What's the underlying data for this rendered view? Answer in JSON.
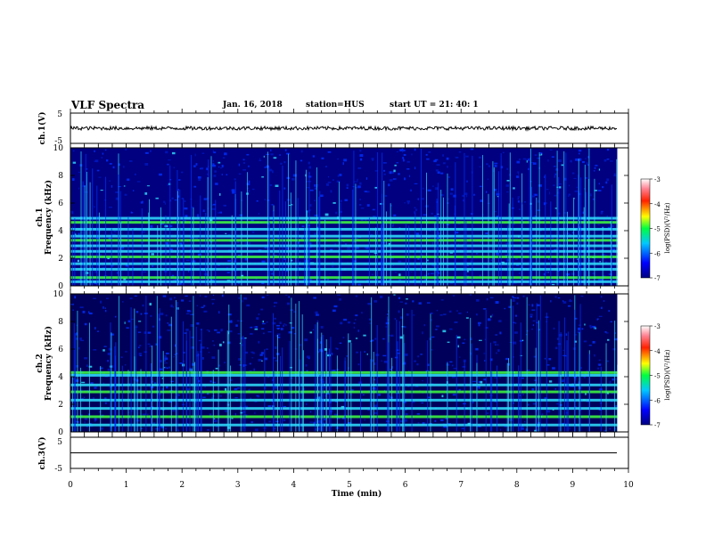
{
  "header": {
    "title": "VLF Spectra",
    "date": "Jan. 16, 2018",
    "station": "station=HUS",
    "start": "start UT =  21: 40: 1"
  },
  "chart_data": [
    {
      "type": "line",
      "panel": "ch1-waveform",
      "ylabel": "ch.1(V)",
      "ylim": [
        -5,
        5
      ],
      "yticks": [
        "5",
        "-5"
      ],
      "xlim": [
        0,
        10
      ],
      "series": [
        {
          "x": [
            0,
            9.8
          ],
          "y": [
            0,
            0
          ]
        }
      ]
    },
    {
      "type": "heatmap",
      "panel": "ch1-spectrogram",
      "ylabel_line1": "ch.1",
      "ylabel_line2": "Frequency (kHz)",
      "ylim": [
        0,
        10
      ],
      "yticks": [
        "0",
        "2",
        "4",
        "6",
        "8",
        "10"
      ],
      "xlim": [
        0,
        10
      ],
      "data_end_min": 9.8,
      "bands_khz": [
        0.3,
        0.6,
        1.2,
        1.6,
        2.1,
        2.5,
        2.9,
        3.3,
        3.6,
        4.1,
        4.6,
        4.9
      ],
      "colorbar": {
        "label": "log(PSD)(V²/Hz)",
        "range": [
          -7,
          -3
        ],
        "ticks": [
          "-3",
          "-4",
          "-5",
          "-6",
          "-7"
        ]
      }
    },
    {
      "type": "heatmap",
      "panel": "ch2-spectrogram",
      "ylabel_line1": "ch.2",
      "ylabel_line2": "Frequency (kHz)",
      "ylim": [
        0,
        10
      ],
      "yticks": [
        "0",
        "2",
        "4",
        "6",
        "8",
        "10"
      ],
      "xlim": [
        0,
        10
      ],
      "data_end_min": 9.8,
      "bands_khz": [
        0.5,
        1.1,
        1.7,
        2.3,
        2.9,
        3.4,
        4.1,
        4.3
      ],
      "colorbar": {
        "label": "log(PSD)(V²/Hz)",
        "range": [
          -7,
          -3
        ],
        "ticks": [
          "-3",
          "-4",
          "-5",
          "-6",
          "-7"
        ]
      }
    },
    {
      "type": "line",
      "panel": "ch3-waveform",
      "ylabel": "ch.3(V)",
      "ylim": [
        -5,
        5
      ],
      "yticks": [
        "5",
        "-5"
      ],
      "xlim": [
        0,
        10
      ],
      "xlabel": "Time (min)",
      "xticks": [
        "0",
        "1",
        "2",
        "3",
        "4",
        "5",
        "6",
        "7",
        "8",
        "9",
        "10"
      ],
      "series": [
        {
          "x": [
            0,
            9.8
          ],
          "y": [
            0,
            0
          ]
        }
      ]
    }
  ],
  "colors": {
    "background": "#000080",
    "spec_blue": "#0030ff",
    "spec_cyan": "#30e0ff",
    "spec_green": "#40ff40"
  }
}
